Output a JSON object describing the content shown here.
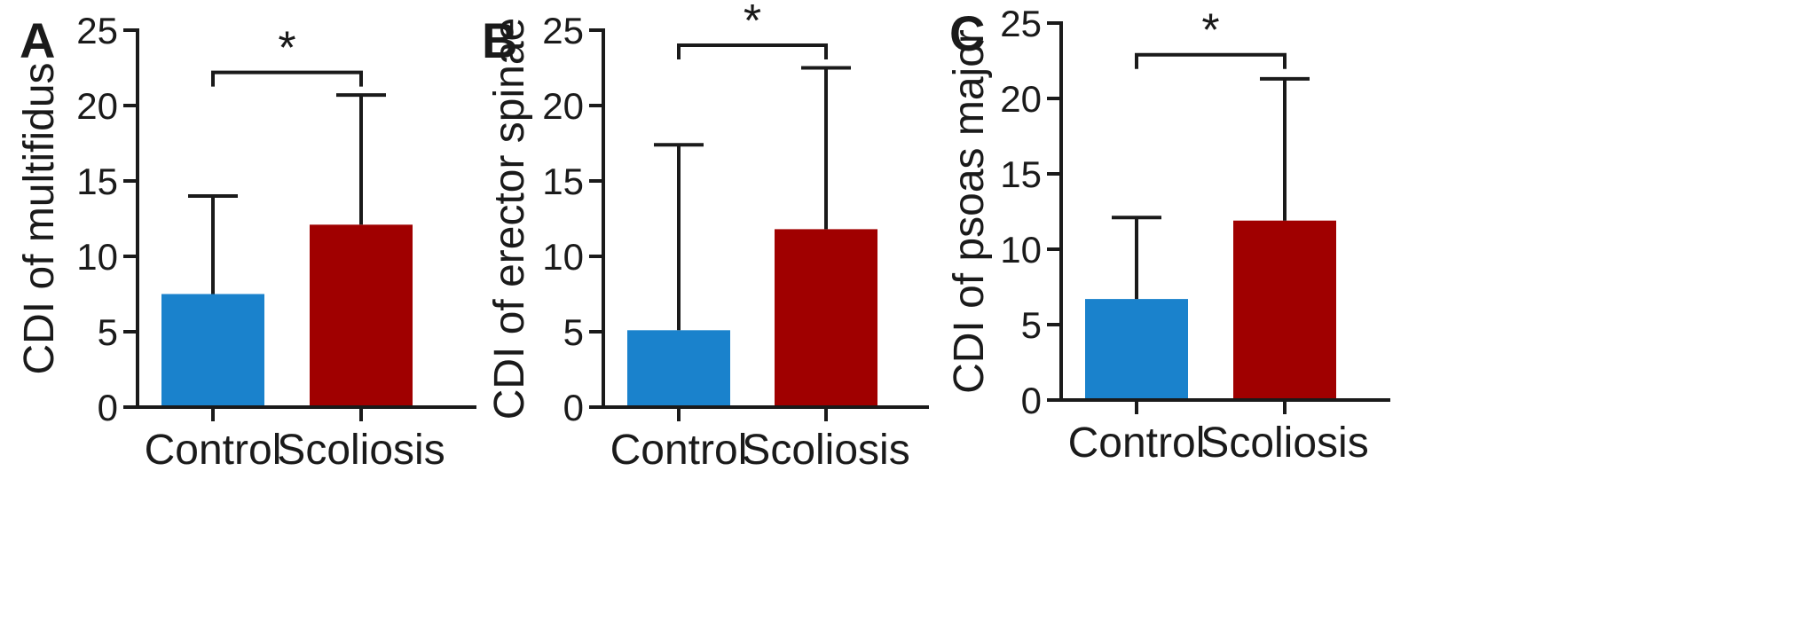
{
  "chart_data": [
    {
      "type": "bar",
      "panel": "A",
      "categories": [
        "Control",
        "Scoliosis"
      ],
      "values": [
        7.5,
        12.1
      ],
      "error_upper": [
        14.0,
        20.7
      ],
      "colors": [
        "#1a82cc",
        "#a00000"
      ],
      "ylabel": "CDI of multifidus",
      "ylim": [
        0,
        25
      ],
      "yticks": [
        0,
        5,
        10,
        15,
        20,
        25
      ],
      "significance": "*",
      "bracket_y": 22.2,
      "grid": false
    },
    {
      "type": "bar",
      "panel": "B",
      "categories": [
        "Control",
        "Scoliosis"
      ],
      "values": [
        5.1,
        11.8
      ],
      "error_upper": [
        17.4,
        22.5
      ],
      "colors": [
        "#1a82cc",
        "#a00000"
      ],
      "ylabel": "CDI of erector spinae",
      "ylim": [
        0,
        25
      ],
      "yticks": [
        0,
        5,
        10,
        15,
        20,
        25
      ],
      "significance": "*",
      "bracket_y": 24.0,
      "grid": false
    },
    {
      "type": "bar",
      "panel": "C",
      "categories": [
        "Control",
        "Scoliosis"
      ],
      "values": [
        6.7,
        11.9
      ],
      "error_upper": [
        12.1,
        21.3
      ],
      "colors": [
        "#1a82cc",
        "#a00000"
      ],
      "ylabel": "CDI of psoas major",
      "ylim": [
        0,
        25
      ],
      "yticks": [
        0,
        5,
        10,
        15,
        20,
        25
      ],
      "significance": "*",
      "bracket_y": 22.9,
      "grid": false
    }
  ]
}
